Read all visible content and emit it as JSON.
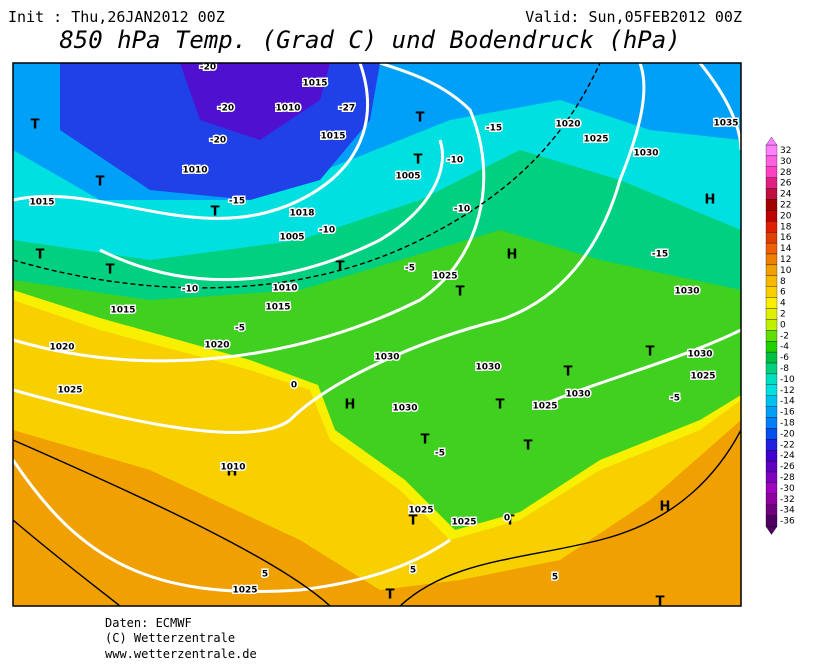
{
  "header": {
    "init": "Init : Thu,26JAN2012 00Z",
    "valid": "Valid: Sun,05FEB2012 00Z",
    "title": "850 hPa Temp. (Grad C) und Bodendruck (hPa)"
  },
  "footer": [
    "Daten: ECMWF",
    "(C) Wetterzentrale",
    "www.wetterzentrale.de"
  ],
  "colorbar": {
    "levels": [
      32,
      30,
      28,
      26,
      24,
      22,
      20,
      18,
      16,
      14,
      12,
      10,
      8,
      6,
      4,
      2,
      0,
      -2,
      -4,
      -6,
      -8,
      -10,
      -12,
      -14,
      -16,
      -18,
      -20,
      -22,
      -24,
      -26,
      -28,
      -30,
      -32,
      -34,
      -36
    ],
    "colors": [
      "#ff80ff",
      "#ff60e0",
      "#ff40c0",
      "#e02080",
      "#c01040",
      "#a00000",
      "#c00000",
      "#e02000",
      "#e04000",
      "#f06000",
      "#f08000",
      "#f0a000",
      "#f8b800",
      "#f8d000",
      "#f8f000",
      "#e0f000",
      "#c0f000",
      "#60e000",
      "#20d000",
      "#00c040",
      "#00d080",
      "#00e0c0",
      "#00e0e0",
      "#00c0f0",
      "#00a0f8",
      "#0080f8",
      "#0050f0",
      "#2020e0",
      "#4000d0",
      "#6000c0",
      "#8000c0",
      "#a000c0",
      "#9000a0",
      "#700080",
      "#500060"
    ]
  },
  "map_labels": [
    "T",
    "T",
    "T",
    "T",
    "T",
    "T",
    "T",
    "T",
    "T",
    "H",
    "H",
    "T",
    "H",
    "T",
    "T",
    "T",
    "T",
    "H",
    "T",
    "T",
    "H",
    "T",
    "T",
    "1015",
    "1010",
    "1015",
    "1010",
    "1005",
    "1018",
    "1005",
    "1015",
    "1010",
    "1015",
    "1015",
    "1020",
    "1020",
    "1025",
    "1025",
    "1030",
    "1030",
    "1030",
    "1025",
    "1030",
    "1020",
    "1025",
    "1030",
    "1035",
    "1030",
    "1030",
    "1025",
    "1010",
    "1025",
    "1025",
    "1025",
    "-20",
    "-20",
    "-20",
    "-27",
    "-10",
    "-15",
    "-10",
    "-15",
    "-10",
    "-5",
    "-10",
    "-5",
    "-15",
    "0",
    "-5",
    "-5",
    "5",
    "5",
    "5",
    "0"
  ]
}
